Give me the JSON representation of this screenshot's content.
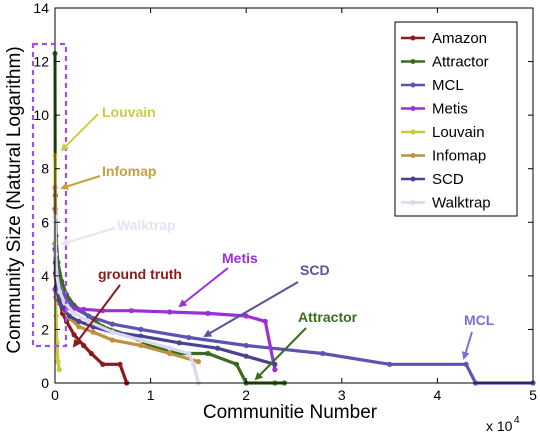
{
  "chart_data": {
    "type": "line",
    "xlabel": "Communitie Number",
    "ylabel": "Community Size (Natural Logarithm)",
    "x_multiplier_label": "x 10",
    "x_multiplier_exp": "4",
    "xlim": [
      0,
      50000
    ],
    "ylim": [
      0,
      14
    ],
    "xticks": [
      0,
      1,
      2,
      3,
      4,
      5
    ],
    "yticks": [
      0,
      2,
      4,
      6,
      8,
      10,
      12,
      14
    ],
    "legend_position": "top-right",
    "series": [
      {
        "name": "Amazon",
        "color": "#8b1a1a",
        "x": [
          1,
          50,
          150,
          300,
          500,
          800,
          1200,
          2000,
          3000,
          3800,
          5000,
          6800,
          7500
        ],
        "y": [
          5.2,
          4.5,
          3.9,
          3.4,
          3.0,
          2.6,
          2.3,
          1.8,
          1.4,
          1.1,
          0.7,
          0.7,
          0.0
        ]
      },
      {
        "name": "Attractor",
        "color": "#3a6b1f",
        "x": [
          1,
          30,
          100,
          300,
          700,
          1200,
          2000,
          3500,
          5000,
          7500,
          10000,
          13000,
          16000,
          19000,
          20000,
          23000,
          24000
        ],
        "y": [
          12.3,
          7.0,
          5.5,
          4.5,
          3.8,
          3.3,
          2.9,
          2.5,
          2.1,
          1.8,
          1.4,
          1.1,
          1.1,
          0.7,
          0.0,
          0.0,
          0.0
        ]
      },
      {
        "name": "MCL",
        "color": "#5b54b0",
        "x": [
          1,
          60,
          200,
          500,
          1000,
          2000,
          3500,
          6000,
          9000,
          14000,
          20000,
          28000,
          35000,
          43000,
          44000,
          50000
        ],
        "y": [
          6.5,
          5.0,
          4.2,
          3.6,
          3.2,
          2.8,
          2.5,
          2.2,
          2.0,
          1.7,
          1.4,
          1.1,
          0.7,
          0.7,
          0.0,
          0.0
        ]
      },
      {
        "name": "Metis",
        "color": "#9b30d9",
        "x": [
          1,
          100,
          300,
          700,
          1500,
          3000,
          5000,
          8000,
          12000,
          16000,
          20000,
          22000,
          23000
        ],
        "y": [
          3.5,
          3.2,
          3.0,
          2.9,
          2.8,
          2.75,
          2.7,
          2.7,
          2.65,
          2.6,
          2.5,
          2.3,
          0.5
        ]
      },
      {
        "name": "Louvain",
        "color": "#c9c93a",
        "x": [
          1,
          20,
          60,
          120,
          200,
          300,
          450
        ],
        "y": [
          8.5,
          6.0,
          4.0,
          2.5,
          1.5,
          0.8,
          0.5
        ]
      },
      {
        "name": "Infomap",
        "color": "#c09040",
        "x": [
          1,
          40,
          120,
          300,
          600,
          1000,
          1600,
          2500,
          4000,
          6000,
          9000,
          12000,
          15000
        ],
        "y": [
          7.3,
          5.2,
          4.2,
          3.5,
          3.0,
          2.7,
          2.4,
          2.1,
          1.9,
          1.6,
          1.4,
          1.1,
          0.8
        ]
      },
      {
        "name": "SCD",
        "color": "#4a4290",
        "x": [
          1,
          50,
          150,
          400,
          800,
          1500,
          2500,
          4000,
          6000,
          9000,
          13000,
          17000,
          20000,
          23000
        ],
        "y": [
          5.0,
          4.1,
          3.6,
          3.1,
          2.8,
          2.5,
          2.3,
          2.1,
          1.9,
          1.75,
          1.5,
          1.3,
          1.0,
          0.7
        ]
      },
      {
        "name": "Walktrap",
        "color": "#d8d8ee",
        "x": [
          1,
          60,
          200,
          500,
          1000,
          2000,
          3500,
          6000,
          9000,
          12000,
          14000,
          14500,
          15000
        ],
        "y": [
          6.2,
          4.8,
          4.0,
          3.4,
          3.0,
          2.6,
          2.3,
          1.9,
          1.6,
          1.3,
          1.1,
          0.7,
          0.0
        ]
      }
    ],
    "annotations": [
      {
        "text": "Louvain",
        "color": "#cccc44"
      },
      {
        "text": "Infomap",
        "color": "#c8a044"
      },
      {
        "text": "Walktrap",
        "color": "#e4e4f2"
      },
      {
        "text": "ground truth",
        "color": "#8b1a1a"
      },
      {
        "text": "Metis",
        "color": "#9b30d9"
      },
      {
        "text": "SCD",
        "color": "#5a529a"
      },
      {
        "text": "Attractor",
        "color": "#3a6b1f"
      },
      {
        "text": "MCL",
        "color": "#7a72d0"
      }
    ]
  }
}
